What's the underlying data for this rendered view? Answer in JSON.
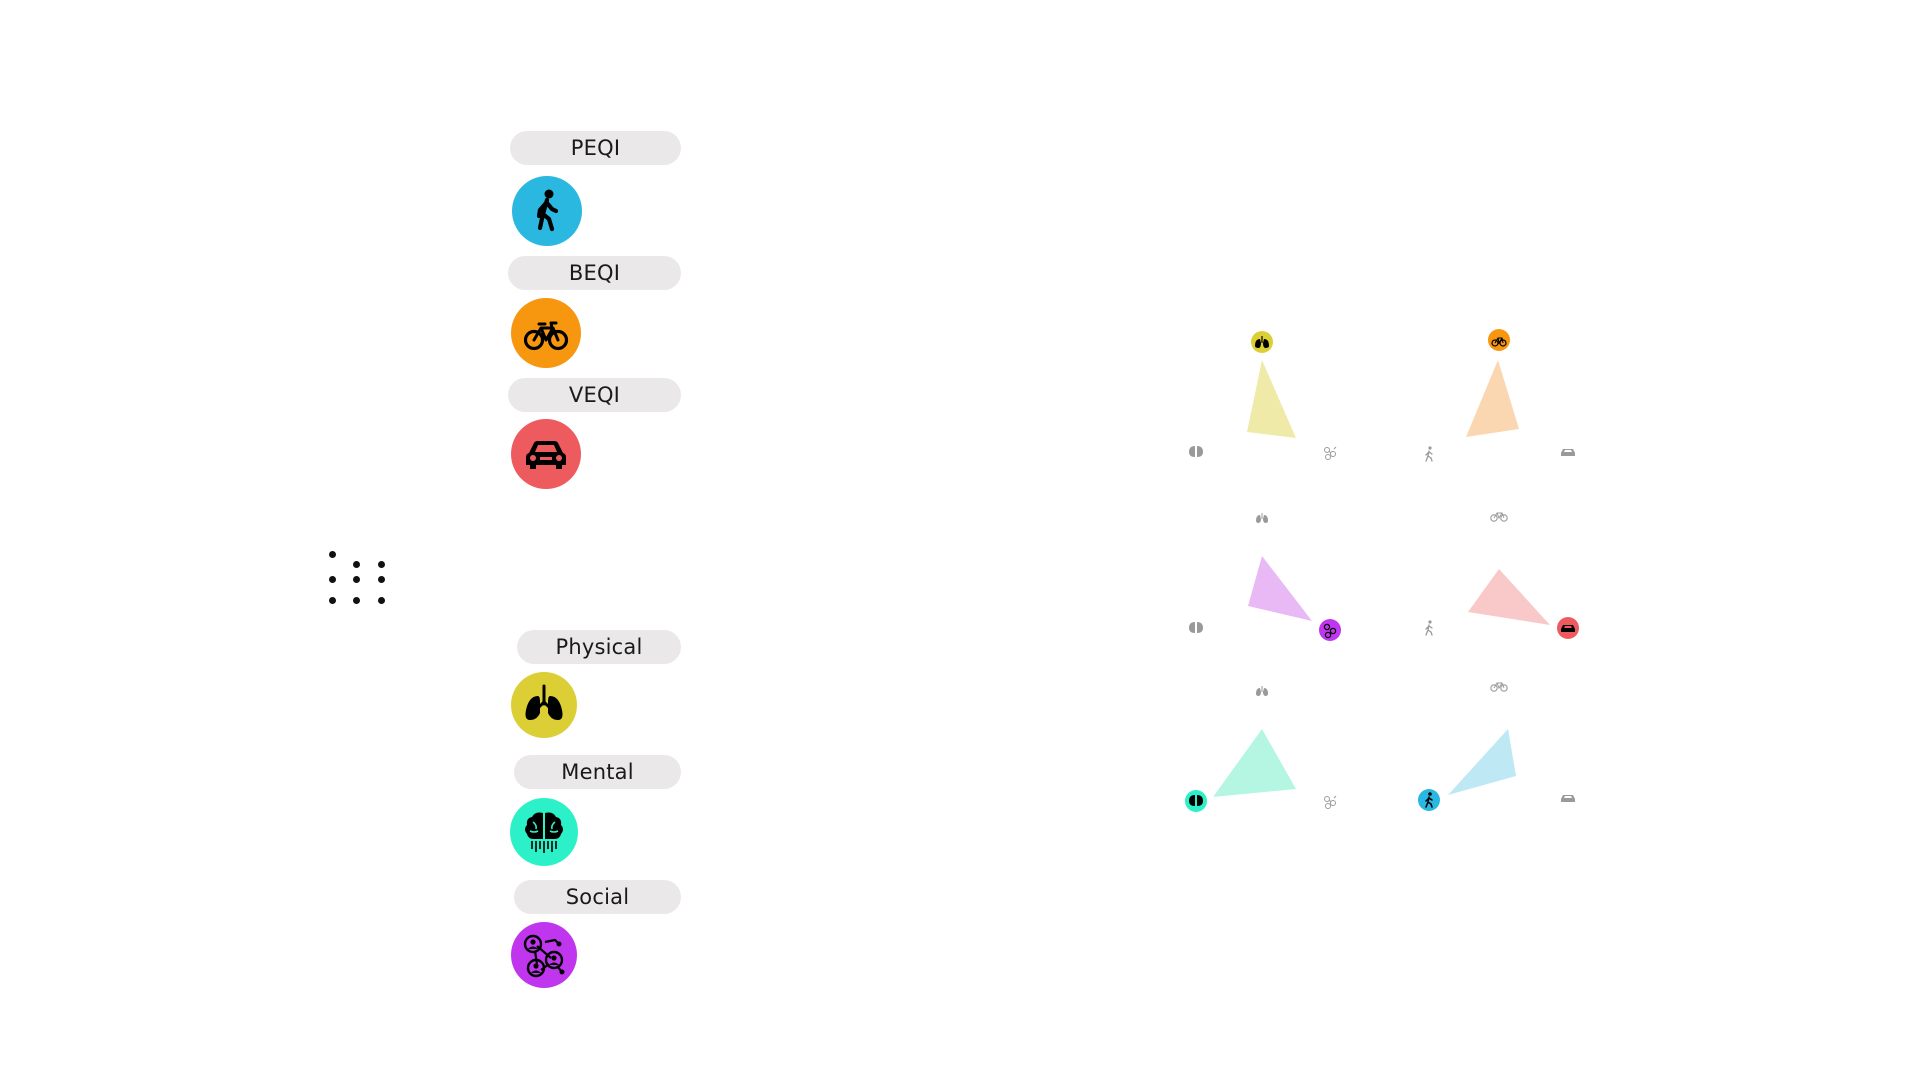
{
  "legend": {
    "modes": [
      {
        "label": "PEQI",
        "icon": "walking-person-icon",
        "color": "#2bb8e0"
      },
      {
        "label": "BEQI",
        "icon": "bicycle-icon",
        "color": "#f7960f"
      },
      {
        "label": "VEQI",
        "icon": "car-icon",
        "color": "#ee5b5f"
      }
    ],
    "health": [
      {
        "label": "Physical",
        "icon": "lungs-icon",
        "color": "#dccf35"
      },
      {
        "label": "Mental",
        "icon": "brain-icon",
        "color": "#2cf0c8"
      },
      {
        "label": "Social",
        "icon": "social-network-icon",
        "color": "#bf36ee"
      }
    ]
  },
  "handle_icon": "drag-grid-icon",
  "triangles": {
    "health_panels": [
      {
        "highlight": "Physical",
        "fill": "#efeaa8"
      },
      {
        "highlight": "Social",
        "fill": "#e8b9f4"
      },
      {
        "highlight": "Mental",
        "fill": "#b5f6e3"
      }
    ],
    "mode_panels": [
      {
        "highlight": "BEQI",
        "fill": "#fad7b1"
      },
      {
        "highlight": "VEQI",
        "fill": "#f9c8c8"
      },
      {
        "highlight": "PEQI",
        "fill": "#bfe8f5"
      }
    ]
  }
}
